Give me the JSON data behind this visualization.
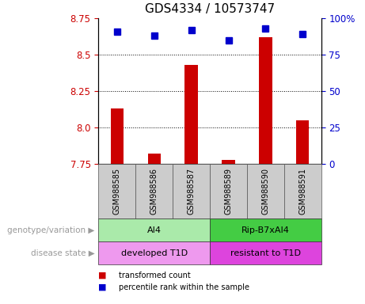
{
  "title": "GDS4334 / 10573747",
  "samples": [
    "GSM988585",
    "GSM988586",
    "GSM988587",
    "GSM988589",
    "GSM988590",
    "GSM988591"
  ],
  "transformed_count": [
    8.13,
    7.82,
    8.43,
    7.78,
    8.62,
    8.05
  ],
  "percentile_rank": [
    91,
    88,
    92,
    85,
    93,
    89
  ],
  "ylim_left": [
    7.75,
    8.75
  ],
  "ylim_right": [
    0,
    100
  ],
  "yticks_left": [
    7.75,
    8.0,
    8.25,
    8.5,
    8.75
  ],
  "yticks_right": [
    0,
    25,
    50,
    75,
    100
  ],
  "yticks_right_labels": [
    "0",
    "25",
    "50",
    "75",
    "100%"
  ],
  "bar_color": "#cc0000",
  "dot_color": "#0000cc",
  "genotype_groups": [
    {
      "label": "AI4",
      "samples_idx": [
        0,
        1,
        2
      ],
      "color": "#aaeaaa"
    },
    {
      "label": "Rip-B7xAI4",
      "samples_idx": [
        3,
        4,
        5
      ],
      "color": "#44cc44"
    }
  ],
  "disease_groups": [
    {
      "label": "developed T1D",
      "samples_idx": [
        0,
        1,
        2
      ],
      "color": "#ee99ee"
    },
    {
      "label": "resistant to T1D",
      "samples_idx": [
        3,
        4,
        5
      ],
      "color": "#dd44dd"
    }
  ],
  "legend_items": [
    {
      "label": "transformed count",
      "color": "#cc0000"
    },
    {
      "label": "percentile rank within the sample",
      "color": "#0000cc"
    }
  ],
  "row_labels": [
    "genotype/variation",
    "disease state"
  ],
  "title_fontsize": 11,
  "tick_fontsize": 8.5,
  "axis_label_color_left": "#cc0000",
  "axis_label_color_right": "#0000cc",
  "sample_box_color": "#cccccc",
  "dotted_lines": [
    8.0,
    8.25,
    8.5
  ]
}
